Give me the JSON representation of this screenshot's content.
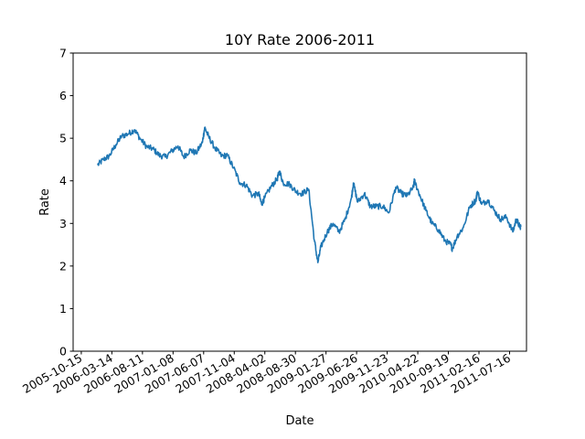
{
  "chart_data": {
    "type": "line",
    "title": "10Y Rate 2006-2011",
    "xlabel": "Date",
    "ylabel": "Rate",
    "ylim": [
      0,
      7
    ],
    "xlim": [
      "2005-09-05",
      "2011-10-07"
    ],
    "yticks": [
      0,
      1,
      2,
      3,
      4,
      5,
      6,
      7
    ],
    "xticks": [
      "2005-10-15",
      "2006-03-14",
      "2006-08-11",
      "2007-01-08",
      "2007-06-07",
      "2007-11-04",
      "2008-04-02",
      "2008-08-30",
      "2009-01-27",
      "2009-06-26",
      "2009-11-23",
      "2010-04-22",
      "2010-09-19",
      "2011-02-16",
      "2011-07-16"
    ],
    "grid": false,
    "series": [
      {
        "color": "#1f77b4",
        "x": [
          "2006-01-03",
          "2006-02-01",
          "2006-03-01",
          "2006-04-03",
          "2006-05-01",
          "2006-06-01",
          "2006-07-03",
          "2006-08-01",
          "2006-09-01",
          "2006-10-02",
          "2006-11-01",
          "2006-12-01",
          "2007-01-02",
          "2007-02-01",
          "2007-03-01",
          "2007-04-02",
          "2007-05-01",
          "2007-06-01",
          "2007-06-12",
          "2007-07-02",
          "2007-08-01",
          "2007-09-04",
          "2007-10-01",
          "2007-11-01",
          "2007-12-03",
          "2008-01-02",
          "2008-02-01",
          "2008-03-03",
          "2008-03-17",
          "2008-04-01",
          "2008-05-01",
          "2008-06-02",
          "2008-06-13",
          "2008-07-01",
          "2008-08-01",
          "2008-09-02",
          "2008-10-01",
          "2008-11-03",
          "2008-12-01",
          "2008-12-18",
          "2009-01-02",
          "2009-02-02",
          "2009-03-02",
          "2009-04-01",
          "2009-05-01",
          "2009-06-01",
          "2009-06-10",
          "2009-07-01",
          "2009-08-03",
          "2009-09-01",
          "2009-10-01",
          "2009-11-02",
          "2009-12-01",
          "2010-01-04",
          "2010-02-01",
          "2010-03-01",
          "2010-04-01",
          "2010-04-05",
          "2010-05-03",
          "2010-06-01",
          "2010-07-01",
          "2010-08-02",
          "2010-09-01",
          "2010-10-01",
          "2010-10-08",
          "2010-11-01",
          "2010-12-01",
          "2011-01-03",
          "2011-02-01",
          "2011-02-08",
          "2011-03-01",
          "2011-04-01",
          "2011-05-02",
          "2011-06-01",
          "2011-07-01",
          "2011-08-01",
          "2011-08-18",
          "2011-09-01",
          "2011-09-09"
        ],
        "y": [
          4.37,
          4.5,
          4.58,
          4.85,
          5.05,
          5.1,
          5.2,
          4.98,
          4.8,
          4.75,
          4.6,
          4.56,
          4.7,
          4.82,
          4.56,
          4.72,
          4.65,
          4.9,
          5.25,
          5.03,
          4.77,
          4.58,
          4.6,
          4.3,
          3.95,
          3.9,
          3.65,
          3.7,
          3.45,
          3.6,
          3.85,
          4.05,
          4.22,
          3.95,
          3.92,
          3.75,
          3.7,
          3.8,
          2.6,
          2.08,
          2.45,
          2.8,
          3.0,
          2.8,
          3.1,
          3.6,
          3.95,
          3.5,
          3.7,
          3.4,
          3.4,
          3.4,
          3.25,
          3.85,
          3.7,
          3.65,
          3.85,
          4.0,
          3.65,
          3.3,
          3.0,
          2.85,
          2.6,
          2.5,
          2.4,
          2.7,
          2.9,
          3.4,
          3.55,
          3.75,
          3.45,
          3.55,
          3.3,
          3.1,
          3.15,
          2.8,
          3.1,
          2.95,
          2.92
        ]
      }
    ]
  }
}
